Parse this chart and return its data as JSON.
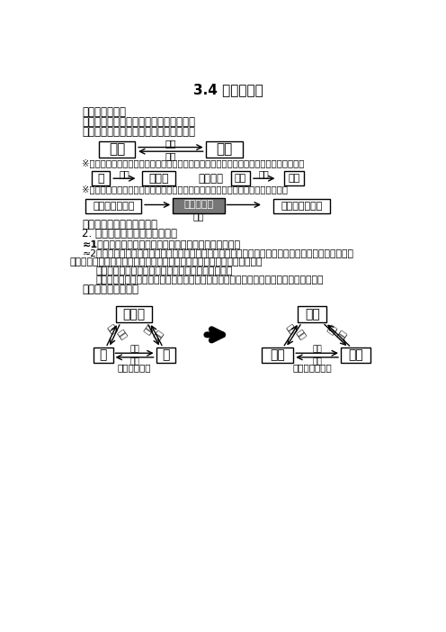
{
  "title": "3.4 升华和凝华",
  "bg_color": "#ffffff",
  "s1_head": "一、升华和凝华",
  "s1_def1": "升华：物质从因态直接变为气态的过程。",
  "s1_def2": "凝华：物质从气态直接变为因态的过程。",
  "note1": "※在严寒的冬天，冰冻的衣服也会晒干；放在衣厨内的樟脑丸越来越小，最后「消失」了。",
  "note2": "※树枝上的雾松、玻璃上的冰花、霜的形成过程中什么物质发生了怎样的物态变化？",
  "s2_head": "二、升华吸热，凝华放热。",
  "s2_sub": "2. 升华吸热，凝华放热的应用：",
  "s2_p1": "≈1用久了的灯泡的灯丝（镰）会变细，灯泡内壁会变黑。",
  "s2_p2": "≈2人工降雨：人们从陆地向云层发射干冰（因态二氧化碳）或从飞机上向云层撒干冰，从而达到降雨的",
  "s2_p2b": "目的。这一实例中包括几种物质的状态发生了变化？分别是什么物态变化？",
  "s2_ans": "回答：因态二氧化碳，升华；空气中水蜂气，液化。",
  "s2_ana": "解析：因态二氧化碳升华吸收热量，造成温度降低，从而导致空气中的水蜂气发生液化。",
  "s3_head": "三、物质的三态联系"
}
